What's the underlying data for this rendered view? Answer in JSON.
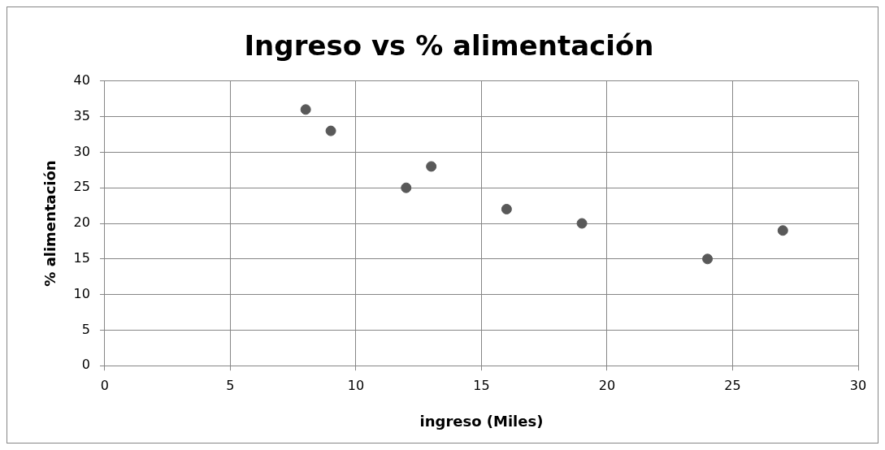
{
  "chart_data": {
    "type": "scatter",
    "title": "Ingreso vs % alimentación",
    "xlabel": "ingreso (Miles)",
    "ylabel": "% alimentación",
    "x": [
      8,
      9,
      12,
      13,
      16,
      19,
      24,
      27
    ],
    "series": [
      {
        "color": "#595959",
        "values": [
          36,
          33,
          25,
          28,
          22,
          20,
          15,
          19
        ]
      }
    ],
    "xlim": [
      0,
      30
    ],
    "xticks": [
      0,
      5,
      10,
      15,
      20,
      25,
      30
    ],
    "ylim": [
      0,
      40
    ],
    "yticks": [
      0,
      5,
      10,
      15,
      20,
      25,
      30,
      35,
      40
    ],
    "grid": true,
    "legend": false,
    "marker": "circle"
  }
}
